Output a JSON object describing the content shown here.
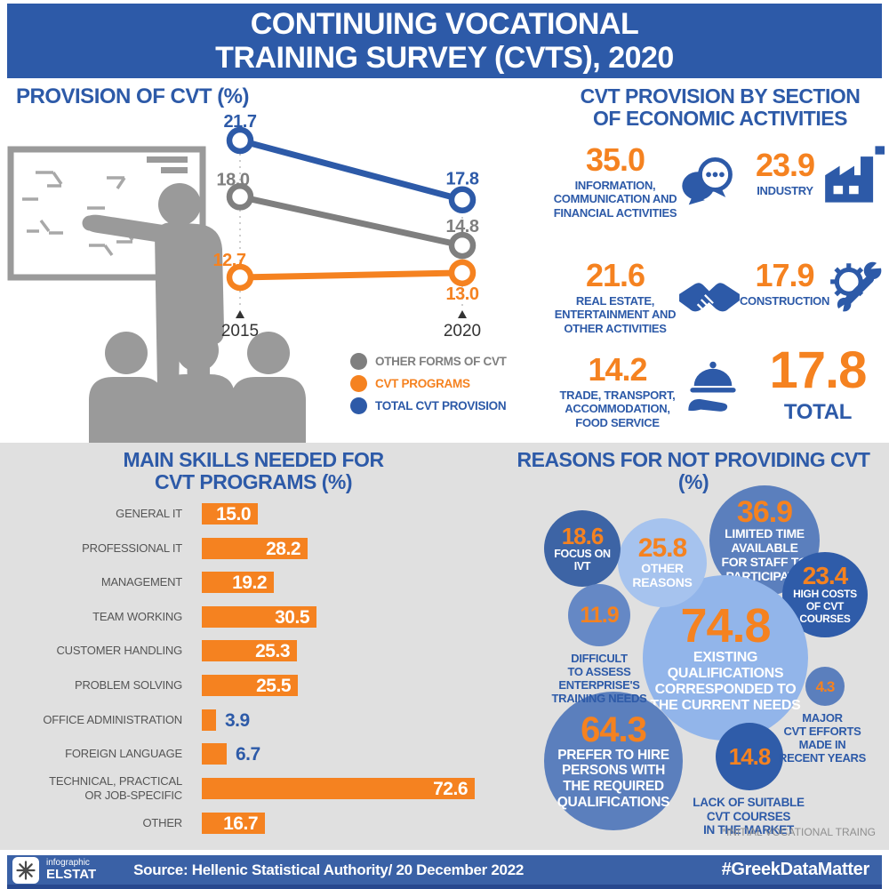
{
  "header": {
    "title": "CONTINUING VOCATIONAL\nTRAINING SURVEY (CVTS), 2020"
  },
  "colors": {
    "brand_blue": "#2d5aa8",
    "accent_orange": "#f58220",
    "neutral_gray": "#7f7f7f",
    "panel_gray": "#e0e0e0",
    "bubble_dark": "#2f5ca9",
    "bubble_medium": "#5b7fbd",
    "bubble_light": "#92b5ea",
    "bubble_lighter": "#a6c3ee"
  },
  "chart_data": [
    {
      "id": "provision",
      "type": "line",
      "title": "PROVISION OF CVT (%)",
      "x": [
        "2015",
        "2020"
      ],
      "series": [
        {
          "name": "TOTAL CVT PROVISION",
          "color": "#2d5aa8",
          "values": [
            21.7,
            17.8
          ]
        },
        {
          "name": "OTHER FORMS OF CVT",
          "color": "#7f7f7f",
          "values": [
            18.0,
            14.8
          ]
        },
        {
          "name": "CVT PROGRAMS",
          "color": "#f58220",
          "values": [
            12.7,
            13.0
          ]
        }
      ],
      "legend_position": "bottom-right",
      "grid": false
    },
    {
      "id": "economic_activities",
      "type": "table",
      "title": "CVT PROVISION BY SECTION\nOF ECONOMIC ACTIVITIES",
      "items": [
        {
          "value": 35.0,
          "label": "INFORMATION,\nCOMMUNICATION AND\nFINANCIAL ACTIVITIES",
          "icon": "chat-icon"
        },
        {
          "value": 23.9,
          "label": "INDUSTRY",
          "icon": "factory-icon"
        },
        {
          "value": 21.6,
          "label": "REAL ESTATE,\nENTERTAINMENT AND\nOTHER ACTIVITIES",
          "icon": "handshake-icon"
        },
        {
          "value": 17.9,
          "label": "CONSTRUCTION",
          "icon": "gear-wrench-icon"
        },
        {
          "value": 14.2,
          "label": "TRADE, TRANSPORT,\nACCOMMODATION,\nFOOD SERVICE",
          "icon": "serving-hand-icon"
        },
        {
          "value": 17.8,
          "label": "TOTAL",
          "icon": ""
        }
      ]
    },
    {
      "id": "skills",
      "type": "bar",
      "title": "MAIN SKILLS NEEDED FOR\nCVT PROGRAMS (%)",
      "categories": [
        "GENERAL IT",
        "PROFESSIONAL IT",
        "MANAGEMENT",
        "TEAM WORKING",
        "CUSTOMER HANDLING",
        "PROBLEM SOLVING",
        "OFFICE ADMINISTRATION",
        "FOREIGN LANGUAGE",
        "TECHNICAL, PRACTICAL\nOR JOB-SPECIFIC",
        "OTHER"
      ],
      "values": [
        15.0,
        28.2,
        19.2,
        30.5,
        25.3,
        25.5,
        3.9,
        6.7,
        72.6,
        16.7
      ],
      "bar_color": "#f58220",
      "xlim": [
        0,
        80
      ],
      "grid": false
    },
    {
      "id": "reasons",
      "type": "bubble",
      "title": "REASONS FOR NOT PROVIDING CVT (%)",
      "footnote": "*INITIAL VOCATIONAL TRAING",
      "bubbles": [
        {
          "value": 18.6,
          "label": "FOCUS ON\nIVT",
          "label_position": "inside",
          "color": "#3d64a5"
        },
        {
          "value": 25.8,
          "label": "OTHER\nREASONS",
          "label_position": "inside",
          "color": "#a6c3ee"
        },
        {
          "value": 36.9,
          "label": "LIMITED TIME\nAVAILABLE\nFOR STAFF TO\nPARTICIPATE",
          "label_position": "inside",
          "color": "#5b7fbd"
        },
        {
          "value": 23.4,
          "label": "HIGH COSTS\nOF CVT COURSES",
          "label_position": "inside",
          "color": "#2f5ca9"
        },
        {
          "value": 11.9,
          "label": "DIFFICULT\nTO ASSESS\nENTERPRISE'S\nTRAINING NEEDS",
          "label_position": "below",
          "color": "#6588c5"
        },
        {
          "value": 74.8,
          "label": "EXISTING QUALIFICATIONS\nCORRESPONDED TO\nTHE CURRENT NEEDS",
          "label_position": "inside",
          "color": "#92b5ea"
        },
        {
          "value": 4.3,
          "label": "MAJOR\nCVT EFFORTS\nMADE IN\nRECENT YEARS",
          "label_position": "below",
          "color": "#5b7fbd"
        },
        {
          "value": 64.3,
          "label": "PREFER TO HIRE\nPERSONS WITH\nTHE REQUIRED\nQUALIFICATIONS",
          "label_position": "inside",
          "color": "#5b7fbd"
        },
        {
          "value": 14.8,
          "label": "LACK OF SUITABLE\nCVT COURSES\nIN THE MARKET",
          "label_position": "below",
          "color": "#2f5ca9"
        }
      ]
    }
  ],
  "footer": {
    "logo_top": "infographic",
    "logo_bottom": "ELSTAT",
    "source": "Source: Hellenic Statistical Authority/ 20 December 2022",
    "hashtag": "#GreekDataMatter"
  }
}
